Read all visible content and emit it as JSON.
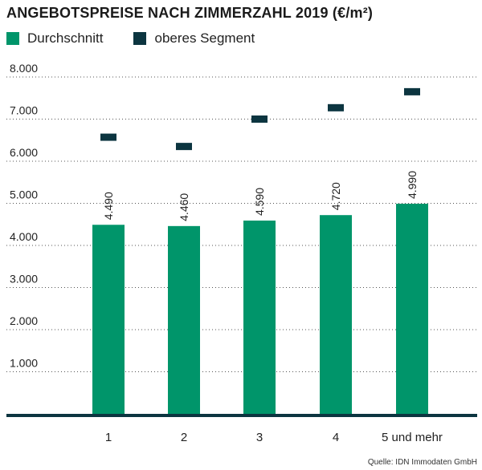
{
  "chart_data": {
    "type": "bar",
    "title": "ANGEBOTSPREISE NACH ZIMMERZAHL 2019 (€/m²)",
    "categories": [
      "1",
      "2",
      "3",
      "4",
      "5 und mehr"
    ],
    "series": [
      {
        "name": "Durchschnitt",
        "values": [
          4490,
          4460,
          4590,
          4720,
          4990
        ],
        "value_labels": [
          "4.490",
          "4.460",
          "4.590",
          "4.720",
          "4.990"
        ],
        "color": "#00956a"
      },
      {
        "name": "oberes Segment",
        "values": [
          6570,
          6350,
          7000,
          7270,
          7650
        ],
        "color": "#0c3540"
      }
    ],
    "yticks": [
      1000,
      2000,
      3000,
      4000,
      5000,
      6000,
      7000,
      8000
    ],
    "ytick_labels": [
      "1.000",
      "2.000",
      "3.000",
      "4.000",
      "5.000",
      "6.000",
      "7.000",
      "8.000"
    ],
    "ylim": [
      0,
      8000
    ],
    "xlabel": "",
    "ylabel": "",
    "grid": "horizontal dotted",
    "legend_position": "top-left",
    "source": "Quelle: IDN Immodaten GmbH"
  }
}
